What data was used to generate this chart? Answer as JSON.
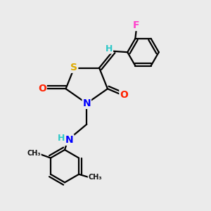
{
  "background_color": "#ebebeb",
  "atom_colors": {
    "C": "#000000",
    "H": "#2ec8c8",
    "N": "#0000ff",
    "O": "#ff2200",
    "S": "#ddaa00",
    "F": "#ff44cc"
  },
  "figsize": [
    3.0,
    3.0
  ],
  "dpi": 100,
  "lw": 1.6
}
